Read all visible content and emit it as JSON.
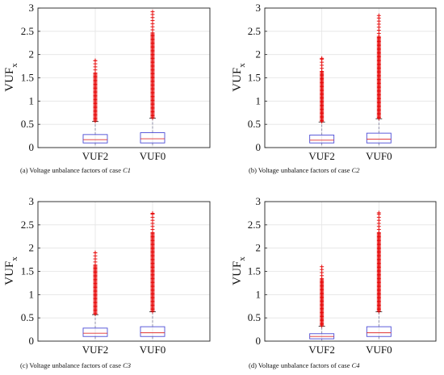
{
  "chart_data": [
    {
      "type": "box",
      "caption": "(a)  Voltage unbalance factors of case",
      "case": "C1",
      "ylabel_main": "VUF",
      "ylabel_sub": "x",
      "ylim": [
        0,
        3
      ],
      "yticks": [
        "0",
        "0.5",
        "1",
        "1.5",
        "2",
        "2.5",
        "3"
      ],
      "grid": true,
      "categories": [
        "VUF2",
        "VUF0"
      ],
      "boxes": [
        {
          "q1": 0.1,
          "median": 0.17,
          "q3": 0.28,
          "whisker_low": 0.0,
          "whisker_high": 0.56,
          "outlier_max": 1.87
        },
        {
          "q1": 0.1,
          "median": 0.19,
          "q3": 0.32,
          "whisker_low": 0.0,
          "whisker_high": 0.63,
          "outlier_max": 2.92
        }
      ]
    },
    {
      "type": "box",
      "caption": "(b)  Voltage unbalance factors of case",
      "case": "C2",
      "ylabel_main": "VUF",
      "ylabel_sub": "x",
      "ylim": [
        0,
        3
      ],
      "yticks": [
        "0",
        "0.5",
        "1",
        "1.5",
        "2",
        "2.5",
        "3"
      ],
      "grid": true,
      "categories": [
        "VUF2",
        "VUF0"
      ],
      "boxes": [
        {
          "q1": 0.1,
          "median": 0.16,
          "q3": 0.27,
          "whisker_low": 0.0,
          "whisker_high": 0.55,
          "outlier_max": 1.92
        },
        {
          "q1": 0.1,
          "median": 0.18,
          "q3": 0.31,
          "whisker_low": 0.0,
          "whisker_high": 0.62,
          "outlier_max": 2.84
        }
      ]
    },
    {
      "type": "box",
      "caption": "(c)  Voltage unbalance factors of case",
      "case": "C3",
      "ylabel_main": "VUF",
      "ylabel_sub": "x",
      "ylim": [
        0,
        3
      ],
      "yticks": [
        "0",
        "0.5",
        "1",
        "1.5",
        "2",
        "2.5",
        "3"
      ],
      "grid": true,
      "categories": [
        "VUF2",
        "VUF0"
      ],
      "boxes": [
        {
          "q1": 0.1,
          "median": 0.17,
          "q3": 0.28,
          "whisker_low": 0.0,
          "whisker_high": 0.57,
          "outlier_max": 1.9
        },
        {
          "q1": 0.1,
          "median": 0.18,
          "q3": 0.31,
          "whisker_low": 0.0,
          "whisker_high": 0.63,
          "outlier_max": 2.75
        }
      ]
    },
    {
      "type": "box",
      "caption": "(d)  Voltage unbalance factors of case",
      "case": "C4",
      "ylabel_main": "VUF",
      "ylabel_sub": "x",
      "ylim": [
        0,
        3
      ],
      "yticks": [
        "0",
        "0.5",
        "1",
        "1.5",
        "2",
        "2.5",
        "3"
      ],
      "grid": true,
      "categories": [
        "VUF2",
        "VUF0"
      ],
      "boxes": [
        {
          "q1": 0.05,
          "median": 0.1,
          "q3": 0.16,
          "whisker_low": 0.0,
          "whisker_high": 0.32,
          "outlier_max": 1.6
        },
        {
          "q1": 0.1,
          "median": 0.18,
          "q3": 0.31,
          "whisker_low": 0.0,
          "whisker_high": 0.63,
          "outlier_max": 2.76
        }
      ]
    }
  ],
  "colors": {
    "box": "#4b4bd6",
    "median": "#e03030",
    "whisker": "#7a7a9a",
    "outlier": "#e60000",
    "grid": "#e4e4e4",
    "axis": "#222222"
  }
}
